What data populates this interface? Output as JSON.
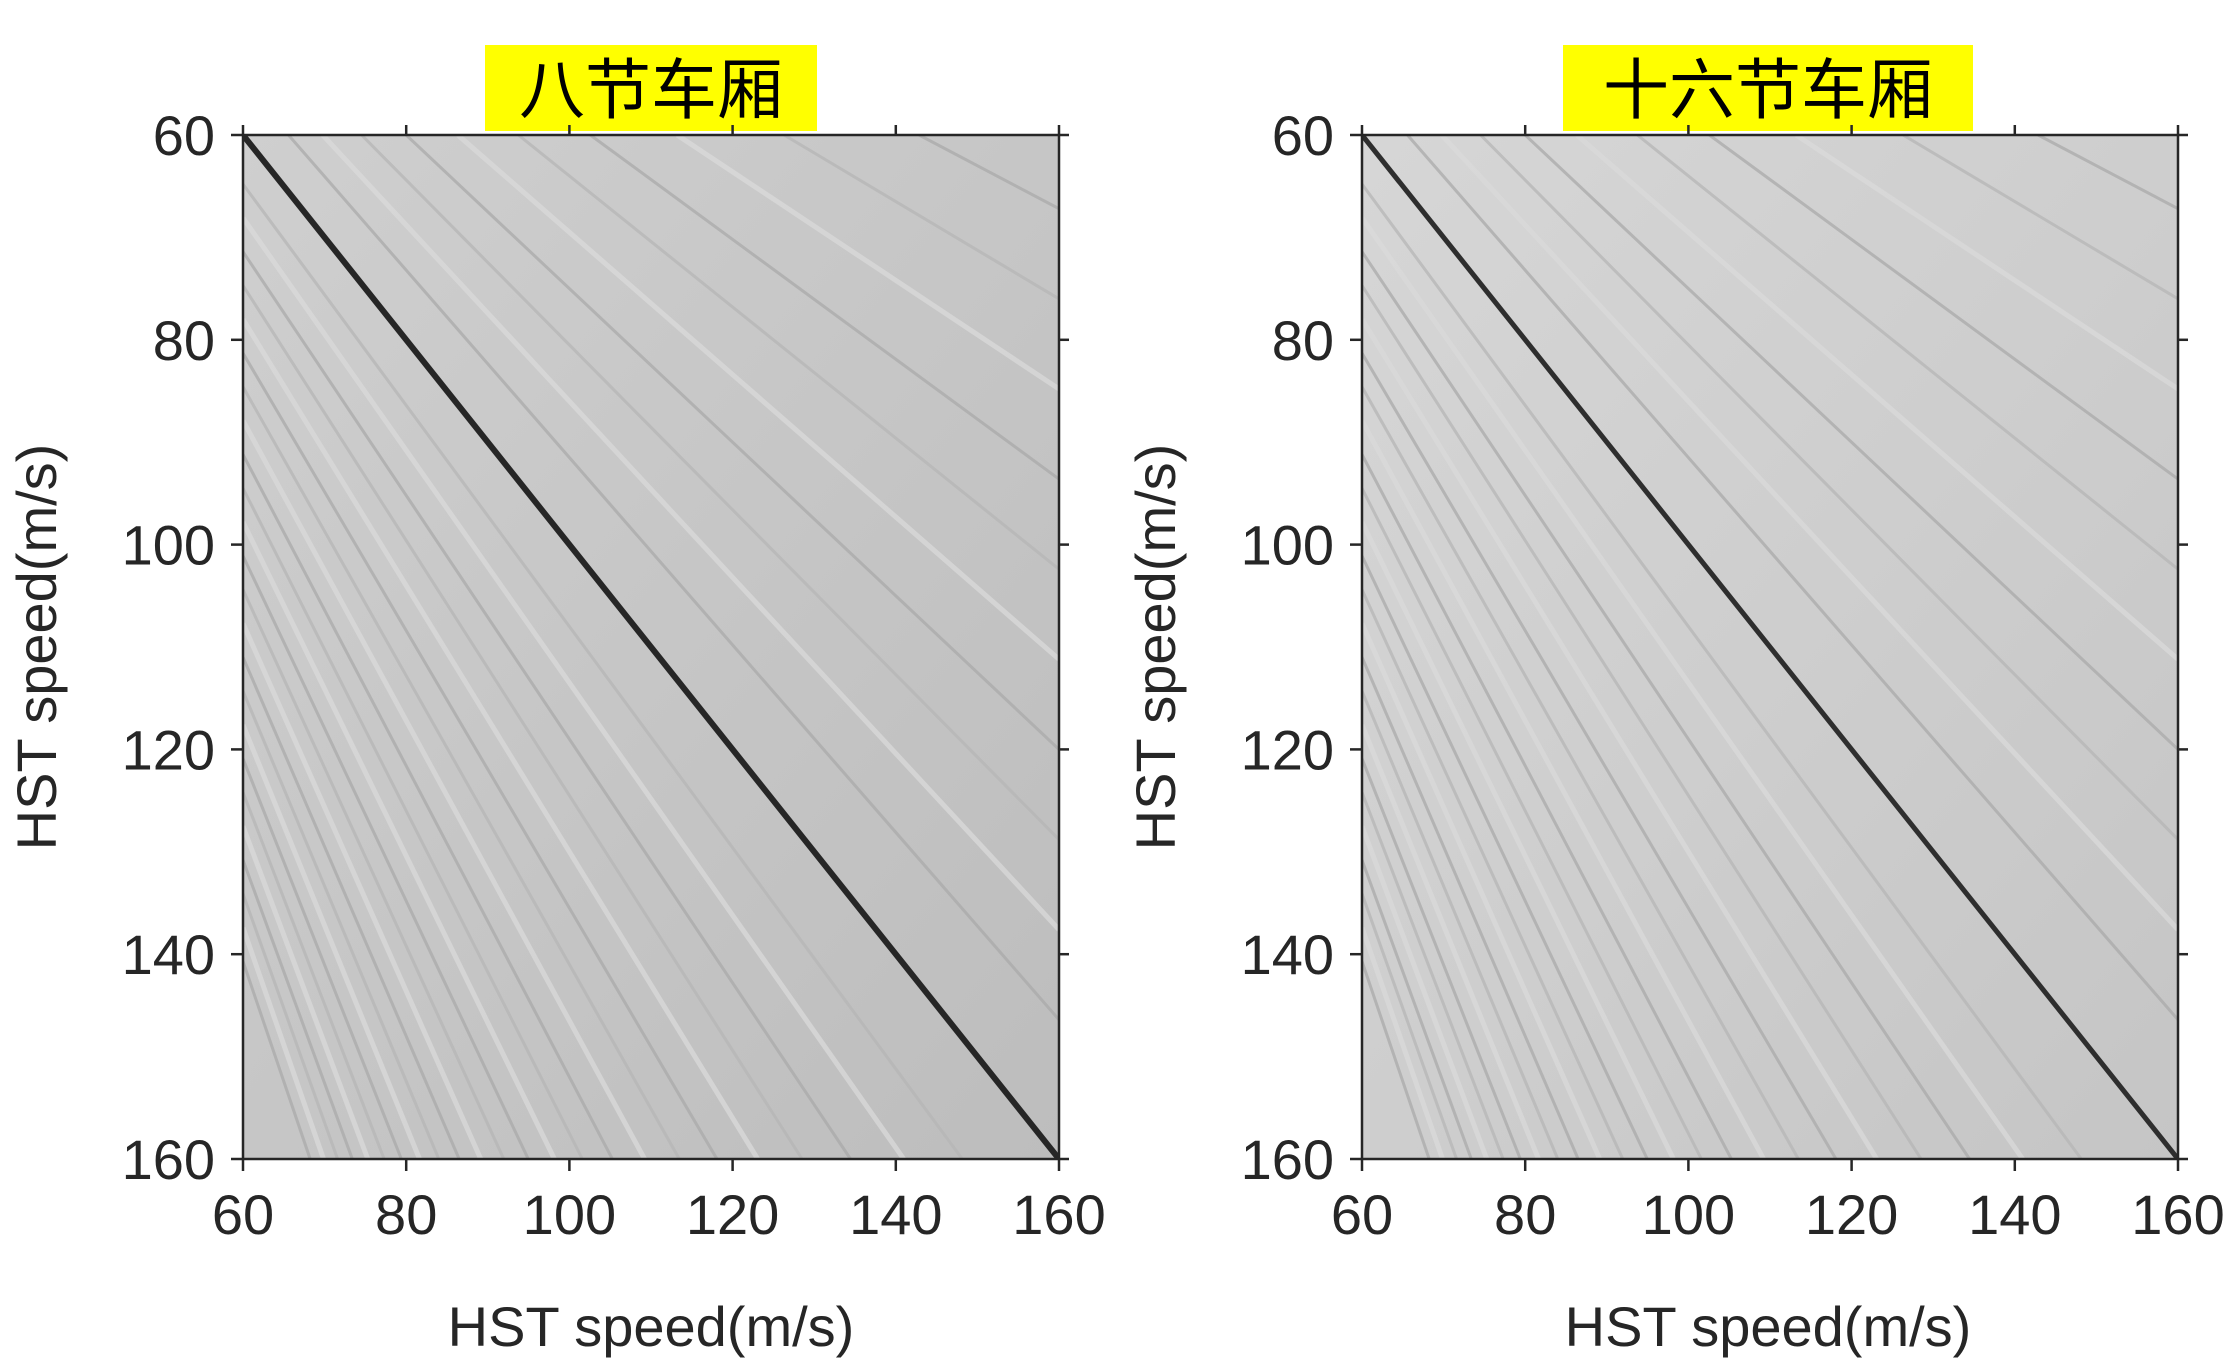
{
  "chart_data": [
    {
      "type": "heatmap",
      "title": "八节车厢",
      "title_highlight": "#ffff00",
      "xlabel": "HST speed(m/s)",
      "ylabel": "HST speed(m/s)",
      "xlim": [
        60,
        160
      ],
      "ylim": [
        60,
        160
      ],
      "y_direction": "down",
      "xticks": [
        60,
        80,
        100,
        120,
        140,
        160
      ],
      "yticks": [
        60,
        80,
        100,
        120,
        140,
        160
      ],
      "colormap": "gray",
      "diagonal_ridge": {
        "from": [
          60,
          60
        ],
        "to": [
          160,
          160
        ]
      }
    },
    {
      "type": "heatmap",
      "title": "十六节车厢",
      "title_highlight": "#ffff00",
      "xlabel": "HST speed(m/s)",
      "ylabel": "HST speed(m/s)",
      "xlim": [
        60,
        160
      ],
      "ylim": [
        60,
        160
      ],
      "y_direction": "down",
      "xticks": [
        60,
        80,
        100,
        120,
        140,
        160
      ],
      "yticks": [
        60,
        80,
        100,
        120,
        140,
        160
      ],
      "colormap": "gray",
      "diagonal_ridge": {
        "from": [
          60,
          60
        ],
        "to": [
          160,
          160
        ]
      }
    }
  ]
}
